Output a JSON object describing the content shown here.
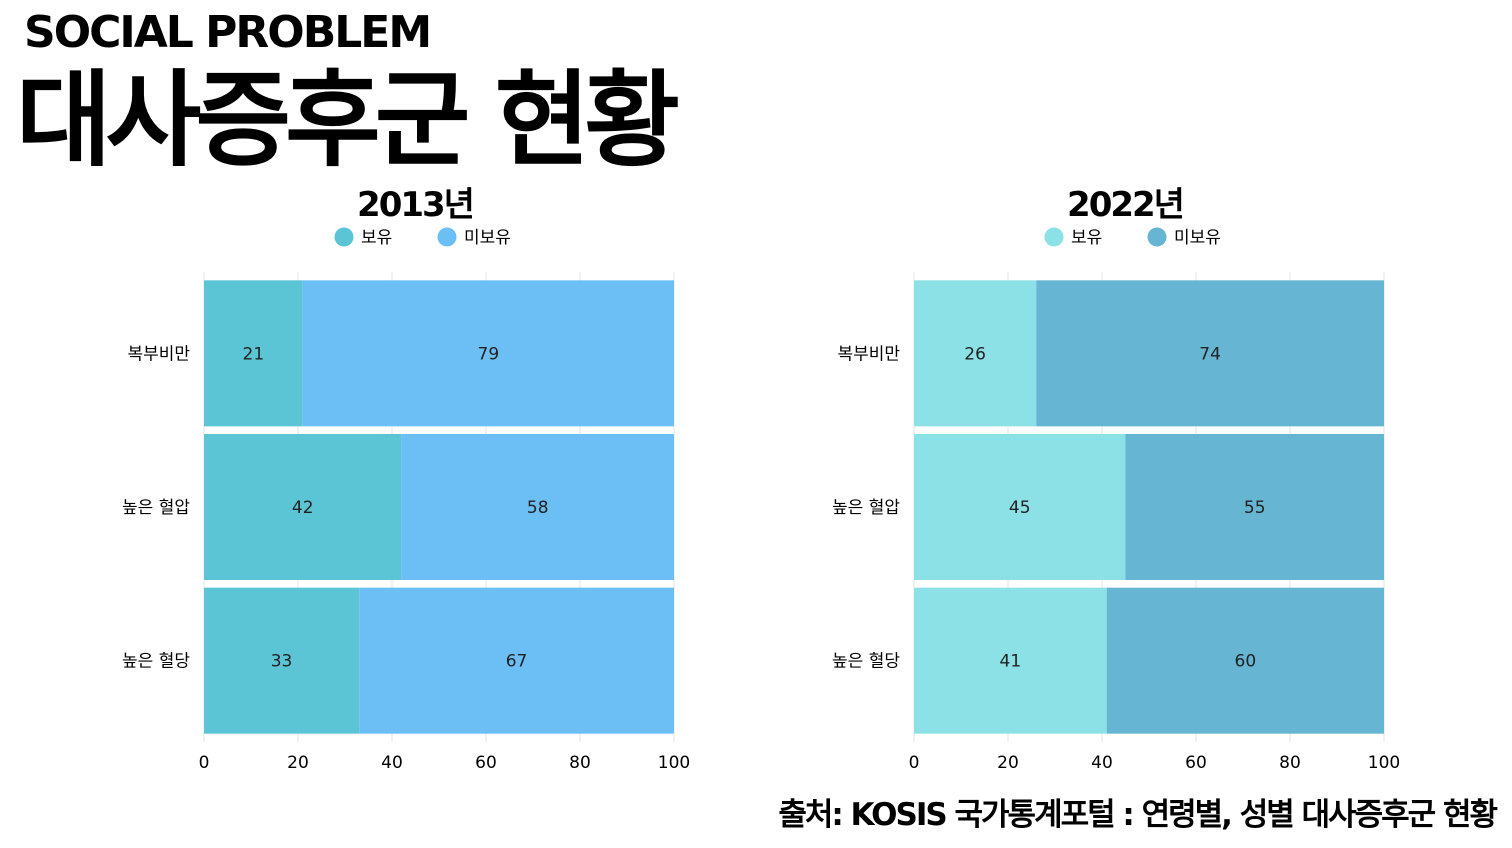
{
  "header": {
    "eyebrow": "SOCIAL PROBLEM",
    "title": "대사증후군 현황"
  },
  "footer": {
    "source": "출처: KOSIS 국가통계포털 : 연령별, 성별 대사증후군 현황"
  },
  "chart_data": [
    {
      "type": "bar",
      "orientation": "horizontal",
      "stacked": true,
      "title": "2013년",
      "categories": [
        "복부비만",
        "높은 혈압",
        "높은 혈당"
      ],
      "series": [
        {
          "name": "보유",
          "values": [
            21,
            42,
            33
          ],
          "color": "#5bc5d6"
        },
        {
          "name": "미보유",
          "values": [
            79,
            58,
            67
          ],
          "color": "#6cbff5"
        }
      ],
      "xlim": [
        0,
        100
      ],
      "xticks": [
        0,
        20,
        40,
        60,
        80,
        100
      ],
      "legend": "top-center",
      "grid": true
    },
    {
      "type": "bar",
      "orientation": "horizontal",
      "stacked": true,
      "title": "2022년",
      "categories": [
        "복부비만",
        "높은 혈압",
        "높은 혈당"
      ],
      "series": [
        {
          "name": "보유",
          "values": [
            26,
            45,
            41
          ],
          "color": "#8ce1e6"
        },
        {
          "name": "미보유",
          "values": [
            74,
            55,
            60
          ],
          "color": "#66b5d3"
        }
      ],
      "xlim": [
        0,
        100
      ],
      "xticks": [
        0,
        20,
        40,
        60,
        80,
        100
      ],
      "legend": "top-center",
      "grid": true
    }
  ]
}
